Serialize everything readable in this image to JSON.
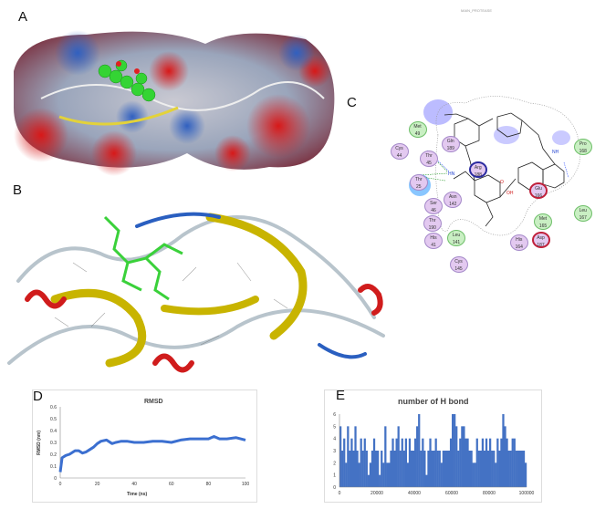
{
  "panels": {
    "a": "A",
    "b": "B",
    "c": "C",
    "d": "D",
    "e": "E"
  },
  "header_text": "MAIN_PROTEASE",
  "interaction_diagram": {
    "residues": [
      {
        "name": "Met",
        "num": "49",
        "type": "green"
      },
      {
        "name": "Gln",
        "num": "189",
        "type": "purple"
      },
      {
        "name": "Cys",
        "num": "44",
        "type": "purple"
      },
      {
        "name": "Thr",
        "num": "45",
        "type": "purple"
      },
      {
        "name": "Thr",
        "num": "25",
        "type": "purple"
      },
      {
        "name": "Ser",
        "num": "46",
        "type": "purple"
      },
      {
        "name": "Asn",
        "num": "142",
        "type": "purple"
      },
      {
        "name": "Thr",
        "num": "190",
        "type": "purple"
      },
      {
        "name": "His",
        "num": "41",
        "type": "purple"
      },
      {
        "name": "Leu",
        "num": "141",
        "type": "green"
      },
      {
        "name": "Cys",
        "num": "145",
        "type": "purple"
      },
      {
        "name": "Arg",
        "num": "188",
        "type": "blue-ring"
      },
      {
        "name": "His",
        "num": "164",
        "type": "purple"
      },
      {
        "name": "Glu",
        "num": "166",
        "type": "red-ring"
      },
      {
        "name": "Met",
        "num": "165",
        "type": "green"
      },
      {
        "name": "Asp",
        "num": "187",
        "type": "red-ring"
      },
      {
        "name": "Pro",
        "num": "168",
        "type": "green"
      },
      {
        "name": "Leu",
        "num": "167",
        "type": "green"
      }
    ],
    "atom_labels": {
      "nh1": "HN",
      "nh2": "NH",
      "oh": "OH",
      "o": "O"
    }
  },
  "colors": {
    "line": "#3b6fd0",
    "bar": "#4472c4",
    "helix": "#d01c1c",
    "sheet": "#c8b400",
    "coil": "#b8c4cc",
    "ligand": "#3ad13a"
  },
  "chart_data": [
    {
      "type": "line",
      "title": "RMSD",
      "xlabel": "Time (ns)",
      "ylabel": "RMSD (nm)",
      "xlim": [
        0,
        100
      ],
      "ylim": [
        0,
        0.6
      ],
      "xticks": [
        "0",
        "20",
        "40",
        "60",
        "80",
        "100"
      ],
      "yticks": [
        "0",
        "0.1",
        "0.2",
        "0.3",
        "0.4",
        "0.5",
        "0.6"
      ],
      "x": [
        0,
        1,
        3,
        5,
        8,
        10,
        12,
        14,
        16,
        18,
        20,
        22,
        25,
        28,
        30,
        33,
        36,
        40,
        45,
        50,
        55,
        60,
        65,
        70,
        75,
        80,
        83,
        86,
        90,
        95,
        100
      ],
      "y": [
        0.05,
        0.17,
        0.19,
        0.2,
        0.23,
        0.23,
        0.21,
        0.22,
        0.24,
        0.26,
        0.29,
        0.31,
        0.32,
        0.29,
        0.3,
        0.31,
        0.31,
        0.3,
        0.3,
        0.31,
        0.31,
        0.3,
        0.32,
        0.33,
        0.33,
        0.33,
        0.35,
        0.33,
        0.33,
        0.34,
        0.32
      ],
      "grid": false
    },
    {
      "type": "bar",
      "title": "number of H bond",
      "xlabel": "",
      "ylabel": "",
      "xlim": [
        0,
        100000
      ],
      "ylim": [
        0,
        6
      ],
      "xticks": [
        "0",
        "20000",
        "40000",
        "60000",
        "80000",
        "100000"
      ],
      "yticks": [
        "0",
        "1",
        "2",
        "3",
        "4",
        "5",
        "6"
      ],
      "x_step": 1000,
      "values": [
        5,
        3,
        4,
        2,
        5,
        3,
        4,
        3,
        5,
        3,
        2,
        4,
        3,
        4,
        3,
        1,
        2,
        3,
        4,
        3,
        3,
        1,
        3,
        2,
        5,
        2,
        2,
        3,
        4,
        3,
        4,
        5,
        3,
        4,
        3,
        4,
        2,
        4,
        3,
        3,
        4,
        5,
        6,
        3,
        4,
        3,
        1,
        3,
        4,
        3,
        3,
        4,
        3,
        3,
        2,
        3,
        3,
        3,
        3,
        4,
        6,
        6,
        5,
        3,
        4,
        5,
        5,
        4,
        4,
        3,
        3,
        2,
        2,
        4,
        3,
        3,
        4,
        3,
        4,
        3,
        4,
        3,
        3,
        2,
        4,
        3,
        4,
        6,
        5,
        4,
        3,
        3,
        4,
        4,
        3,
        3,
        3,
        3,
        3,
        2
      ],
      "grid": false
    }
  ]
}
